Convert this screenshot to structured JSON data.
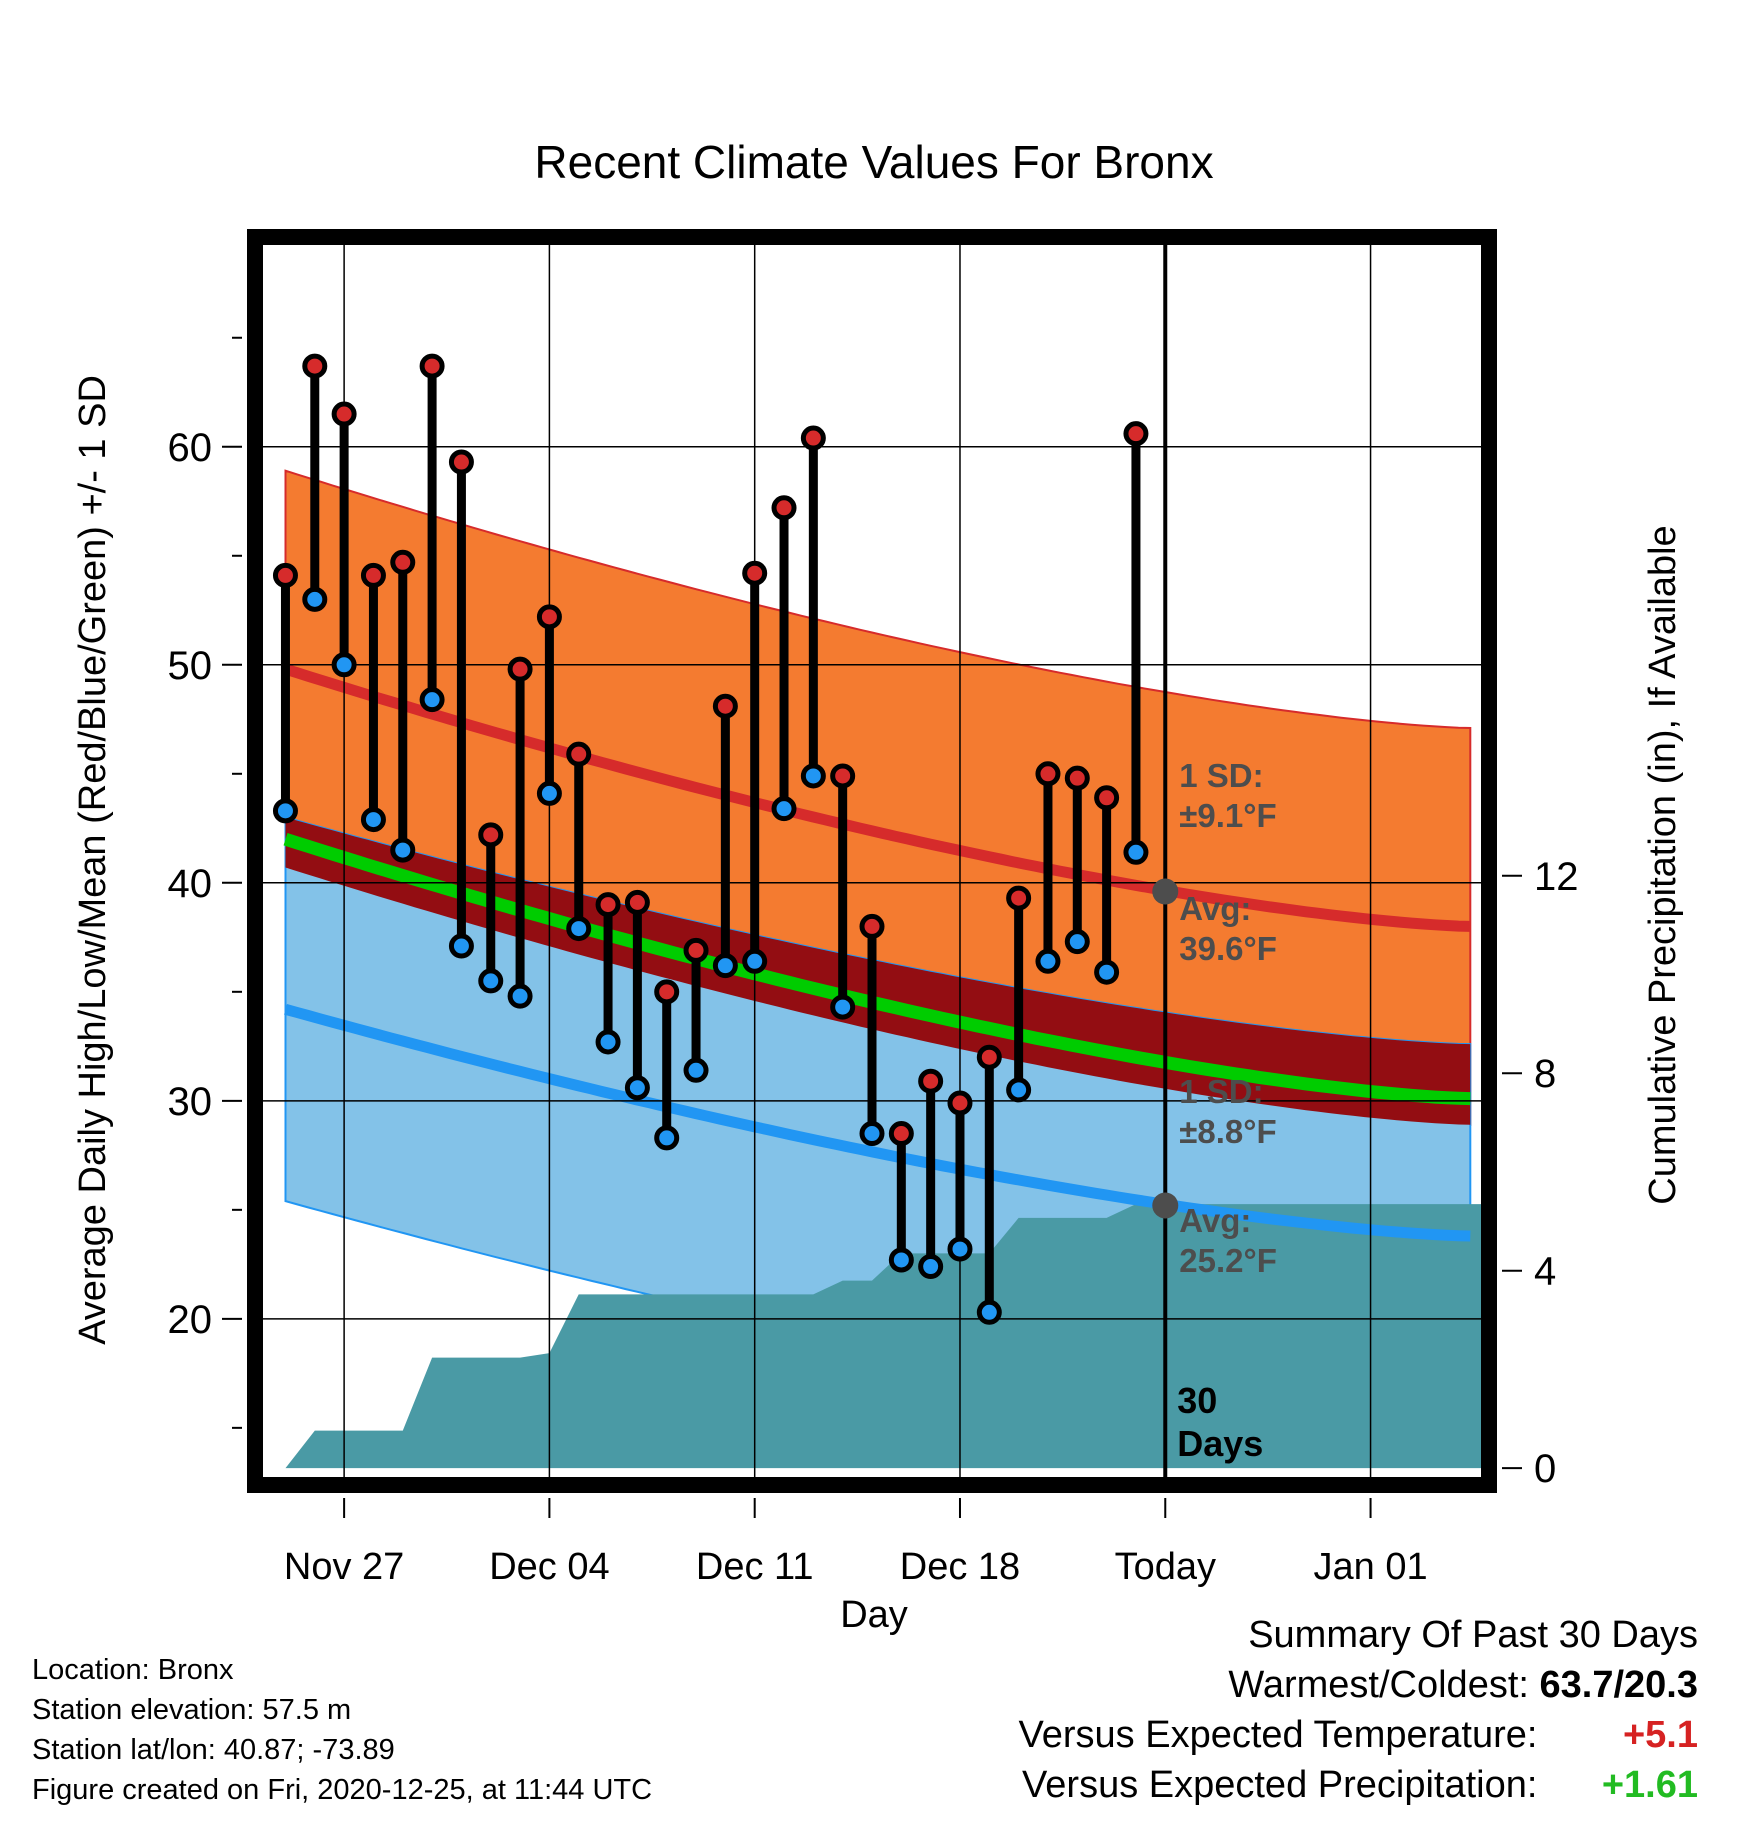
{
  "chart_data": {
    "type": "line",
    "title": "Recent Climate Values For Bronx",
    "xlabel": "Day",
    "ylabel": "Average Daily High/Low/Mean (Red/Blue/Green) +/- 1 SD",
    "y2label": "Cumulative Precipitation (in), If Available",
    "x_tick_labels": [
      "Nov 27",
      "Dec 04",
      "Dec 11",
      "Dec 18",
      "Today",
      "Jan 01"
    ],
    "x_tick_days": [
      2,
      9,
      16,
      23,
      30,
      37
    ],
    "xlim": [
      -0.8,
      40.8
    ],
    "ylim": [
      12.7,
      69.3
    ],
    "y_ticks": [
      20,
      30,
      40,
      50,
      60
    ],
    "y2lim": [
      -0.2,
      24.8
    ],
    "y2_ticks": [
      0,
      4,
      8,
      12
    ],
    "grid": true,
    "today_day": 30,
    "today_label": [
      "30",
      "Days"
    ],
    "high_normal": {
      "start": 49.8,
      "end": 38.0,
      "sd": 9.1,
      "color": "#d62b2b",
      "band_color": "#f47b30"
    },
    "low_normal": {
      "start": 34.2,
      "end": 23.8,
      "sd": 8.8,
      "color": "#2196f3",
      "band_color": "#83c2e8"
    },
    "mean_normal": {
      "start": 42.0,
      "end": 30.1,
      "color": "#00cc00"
    },
    "avg_high_annotation": {
      "sd_label": "1 SD:",
      "sd_value": "±9.1°F",
      "avg_label": "Avg:",
      "avg_value": "39.6°F",
      "value": 39.6
    },
    "avg_low_annotation": {
      "sd_label": "1 SD:",
      "sd_value": "±8.8°F",
      "avg_label": "Avg:",
      "avg_value": "25.2°F",
      "value": 25.2
    },
    "series": [
      {
        "name": "High",
        "color": "#d62b2b",
        "values": [
          54.1,
          63.7,
          61.5,
          54.1,
          54.7,
          63.7,
          59.3,
          42.2,
          49.8,
          52.2,
          45.9,
          39.0,
          39.1,
          35.0,
          36.9,
          48.1,
          54.2,
          57.2,
          60.4,
          44.9,
          38.0,
          28.5,
          30.9,
          29.9,
          32.0,
          39.3,
          45.0,
          44.8,
          43.9,
          60.6
        ]
      },
      {
        "name": "Low",
        "color": "#2196f3",
        "values": [
          43.3,
          53.0,
          50.0,
          42.9,
          41.5,
          48.4,
          37.1,
          35.5,
          34.8,
          44.1,
          37.9,
          32.7,
          30.6,
          28.3,
          31.4,
          36.2,
          36.4,
          43.4,
          44.9,
          34.3,
          28.5,
          22.7,
          22.4,
          23.2,
          20.3,
          30.5,
          36.4,
          37.3,
          35.9,
          41.4
        ]
      },
      {
        "name": "Precipitation",
        "precip_days": [
          0,
          1,
          2,
          3,
          4,
          5,
          6,
          7,
          8,
          9,
          10,
          11,
          12,
          13,
          14,
          15,
          16,
          17,
          18,
          19,
          20,
          21,
          22,
          23,
          24,
          25,
          26,
          27,
          28,
          29,
          30,
          40
        ],
        "precip_values": [
          0.0,
          0.76,
          0.76,
          0.76,
          0.76,
          2.24,
          2.24,
          2.24,
          2.24,
          2.33,
          3.52,
          3.52,
          3.52,
          3.52,
          3.52,
          3.52,
          3.52,
          3.52,
          3.52,
          3.8,
          3.8,
          4.35,
          4.35,
          4.35,
          4.35,
          5.07,
          5.07,
          5.07,
          5.07,
          5.35,
          5.35,
          5.35
        ]
      }
    ]
  },
  "info": {
    "location": "Location: Bronx",
    "elevation": "Station elevation: 57.5 m",
    "latlon": "Station lat/lon: 40.87; -73.89",
    "created": "Figure created on Fri, 2020-12-25, at 11:44 UTC"
  },
  "summary": {
    "title": "Summary Of Past 30 Days",
    "warm_cold_label": "Warmest/Coldest:",
    "warm_cold_value": "63.7/20.3",
    "temp_label": "Versus Expected Temperature:",
    "temp_value": "+5.1",
    "precip_label": "Versus Expected Precipitation:",
    "precip_value": "+1.61"
  },
  "colors": {
    "precip_fill": "#4a9aa5",
    "mean_dark": "#930d12",
    "frame": "#000000",
    "annotation_text": "#4d4d4d",
    "point_outline": "#000000"
  }
}
